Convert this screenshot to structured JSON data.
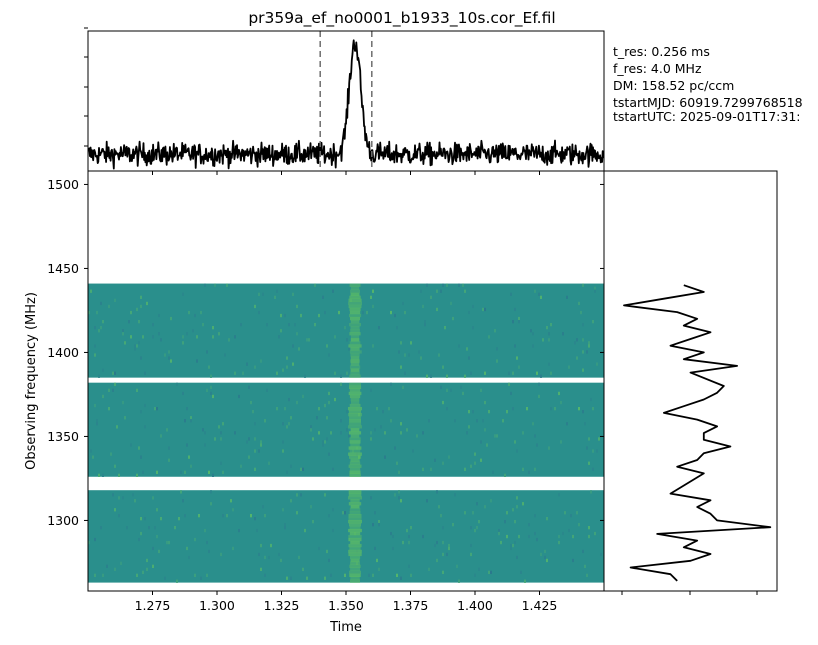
{
  "title": "pr359a_ef_no0001_b1933_10s.cor_Ef.fil",
  "info_lines": [
    "t_res: 0.256 ms",
    "f_res: 4.0 MHz",
    "DM: 158.52 pc/ccm",
    "tstartMJD: 60919.7299768518",
    "tstartUTC: 2025-09-01T17:31:"
  ],
  "colors": {
    "line": "#000000",
    "marker": "#6e6e6e",
    "waterfall_base": "#2a8f8c",
    "waterfall_bright": "#62c25f",
    "waterfall_dark": "#2c6e8e"
  },
  "chart_data": [
    {
      "type": "line",
      "panel": "time-profile",
      "xlim": [
        1.25,
        1.45
      ],
      "markers_x": [
        1.34,
        1.36
      ],
      "pulse": {
        "center": 1.3535,
        "width": 0.0022,
        "peak": 10
      },
      "ylim": [
        -1.5,
        11
      ]
    },
    {
      "type": "heatmap",
      "panel": "waterfall",
      "xlabel": "Time",
      "ylabel": "Observing frequency (MHz)",
      "xlim": [
        1.25,
        1.45
      ],
      "ylim": [
        1258,
        1508
      ],
      "xticks": [
        "1.275",
        "1.300",
        "1.325",
        "1.350",
        "1.375",
        "1.400",
        "1.425"
      ],
      "xtick_values": [
        1.275,
        1.3,
        1.325,
        1.35,
        1.375,
        1.4,
        1.425
      ],
      "yticks": [
        "1300",
        "1350",
        "1400",
        "1450",
        "1500"
      ],
      "ytick_values": [
        1300,
        1350,
        1400,
        1450,
        1500
      ],
      "bands_mhz": [
        [
          1385,
          1441
        ],
        [
          1326,
          1382
        ],
        [
          1263,
          1318
        ]
      ],
      "pulse_time": 1.3535
    },
    {
      "type": "line",
      "panel": "spectrum",
      "ylim": [
        1258,
        1508
      ],
      "xlim": [
        -0.6,
        2.0
      ],
      "freqs": [
        1440,
        1436,
        1432,
        1428,
        1424,
        1420,
        1416,
        1412,
        1408,
        1404,
        1400,
        1396,
        1392,
        1388,
        1380,
        1376,
        1372,
        1368,
        1364,
        1360,
        1356,
        1352,
        1348,
        1344,
        1340,
        1336,
        1332,
        1328,
        1316,
        1312,
        1308,
        1304,
        1300,
        1296,
        1292,
        1288,
        1284,
        1280,
        1276,
        1272,
        1268,
        1264
      ],
      "values": [
        0.6,
        0.9,
        0.3,
        -0.3,
        0.5,
        0.8,
        0.6,
        1.0,
        0.7,
        0.4,
        0.9,
        0.6,
        1.4,
        0.7,
        1.2,
        1.1,
        0.9,
        0.6,
        0.3,
        0.8,
        1.1,
        0.9,
        0.9,
        1.3,
        0.9,
        0.8,
        0.5,
        0.9,
        0.4,
        1.0,
        0.8,
        1.0,
        1.1,
        1.9,
        0.2,
        0.8,
        0.6,
        1.0,
        0.7,
        -0.2,
        0.4,
        0.5
      ]
    }
  ]
}
